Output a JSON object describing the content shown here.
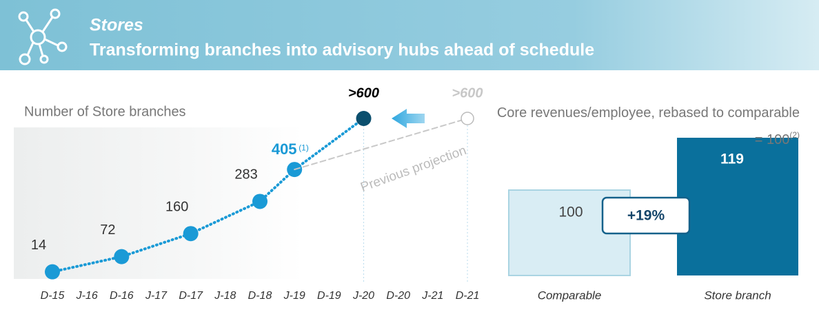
{
  "header": {
    "title": "Stores",
    "subtitle": "Transforming branches into advisory hubs ahead of schedule"
  },
  "chart_data": [
    {
      "type": "line",
      "title": "Number of Store branches",
      "categories": [
        "D-15",
        "J-16",
        "D-16",
        "J-17",
        "D-17",
        "J-18",
        "D-18",
        "J-19",
        "D-19",
        "J-20",
        "D-20",
        "J-21",
        "D-21"
      ],
      "ylim": [
        0,
        600
      ],
      "series": [
        {
          "color": "#1a9ad6",
          "values": [
            14,
            null,
            72,
            null,
            160,
            null,
            283,
            405,
            null,
            600,
            null,
            null,
            null
          ],
          "value_labels": [
            "14",
            null,
            "72",
            null,
            "160",
            null,
            "283",
            "405",
            null,
            ">600",
            null,
            null,
            null
          ]
        },
        {
          "name": "Previous projection",
          "color": "#c8c8c8",
          "values": [
            null,
            null,
            null,
            null,
            null,
            null,
            null,
            405,
            null,
            null,
            null,
            null,
            600
          ],
          "value_labels": [
            null,
            null,
            null,
            null,
            null,
            null,
            null,
            null,
            null,
            null,
            null,
            null,
            ">600"
          ]
        }
      ],
      "annotation": "(1)"
    },
    {
      "type": "bar",
      "title": "Core revenues/employee, rebased to comparable = 100",
      "title_note": "(2)",
      "categories": [
        "Comparable",
        "Store branch"
      ],
      "values": [
        100,
        119
      ],
      "colors": [
        "#d9edf4",
        "#0a709c"
      ],
      "ylim": [
        69,
        119
      ],
      "annotation": "+19%"
    }
  ]
}
